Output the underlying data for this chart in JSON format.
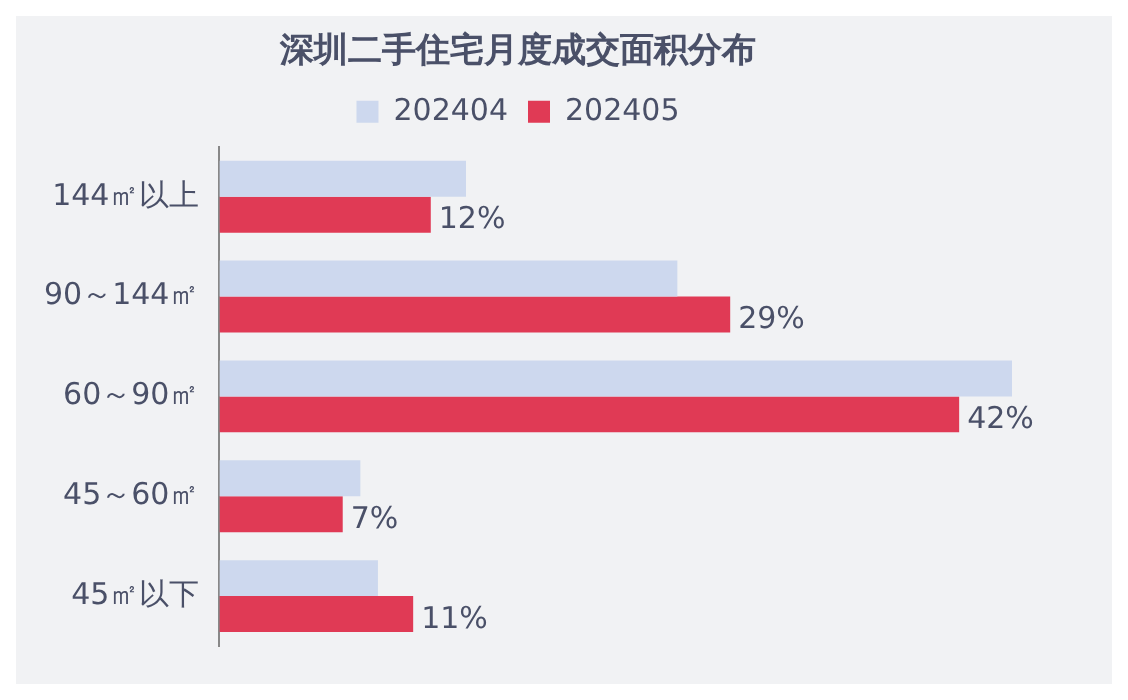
{
  "chart_data": {
    "type": "bar",
    "orientation": "horizontal",
    "title": "深圳二手住宅月度成交面积分布",
    "categories": [
      "144㎡以上",
      "90～144㎡",
      "60～90㎡",
      "45～60㎡",
      "45㎡以下"
    ],
    "series": [
      {
        "name": "202404",
        "color": "#cdd8ee",
        "values": [
          14,
          26,
          45,
          8,
          9
        ]
      },
      {
        "name": "202405",
        "color": "#e03a55",
        "values": [
          12,
          29,
          42,
          7,
          11
        ],
        "value_labels": [
          "12%",
          "29%",
          "42%",
          "7%",
          "11%"
        ]
      }
    ],
    "tick_labels": "y",
    "grid": false,
    "legend": "top"
  }
}
